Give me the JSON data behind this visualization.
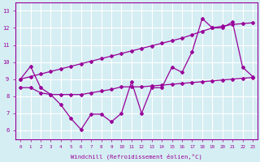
{
  "x": [
    0,
    1,
    2,
    3,
    4,
    5,
    6,
    7,
    8,
    9,
    10,
    11,
    12,
    13,
    14,
    15,
    16,
    17,
    18,
    19,
    20,
    21,
    22,
    23
  ],
  "y_zigzag": [
    9.0,
    9.75,
    8.5,
    8.1,
    7.5,
    6.7,
    6.05,
    6.95,
    6.95,
    6.5,
    7.0,
    8.85,
    7.0,
    8.5,
    8.5,
    9.7,
    9.4,
    10.6,
    12.55,
    12.0,
    12.0,
    12.35,
    9.7,
    9.15
  ],
  "y_trend": [
    9.0,
    9.15,
    9.3,
    9.45,
    9.6,
    9.75,
    9.9,
    10.05,
    10.2,
    10.35,
    10.5,
    10.65,
    10.8,
    10.95,
    11.1,
    11.25,
    11.4,
    11.6,
    11.8,
    12.0,
    12.1,
    12.2,
    12.25,
    12.3
  ],
  "y_flat": [
    8.5,
    8.5,
    8.2,
    8.1,
    8.1,
    8.1,
    8.1,
    8.2,
    8.3,
    8.4,
    8.55,
    8.55,
    8.55,
    8.6,
    8.65,
    8.7,
    8.75,
    8.8,
    8.85,
    8.9,
    8.95,
    9.0,
    9.05,
    9.1
  ],
  "line_color": "#990099",
  "bg_color": "#d5eef3",
  "grid_color": "#ffffff",
  "xlabel": "Windchill (Refroidissement éolien,°C)",
  "ylim": [
    5.5,
    13.5
  ],
  "xlim": [
    -0.5,
    23.5
  ],
  "yticks": [
    6,
    7,
    8,
    9,
    10,
    11,
    12,
    13
  ],
  "xticks": [
    0,
    1,
    2,
    3,
    4,
    5,
    6,
    7,
    8,
    9,
    10,
    11,
    12,
    13,
    14,
    15,
    16,
    17,
    18,
    19,
    20,
    21,
    22,
    23
  ],
  "marker": "D",
  "markersize": 2.0,
  "linewidth": 0.9
}
